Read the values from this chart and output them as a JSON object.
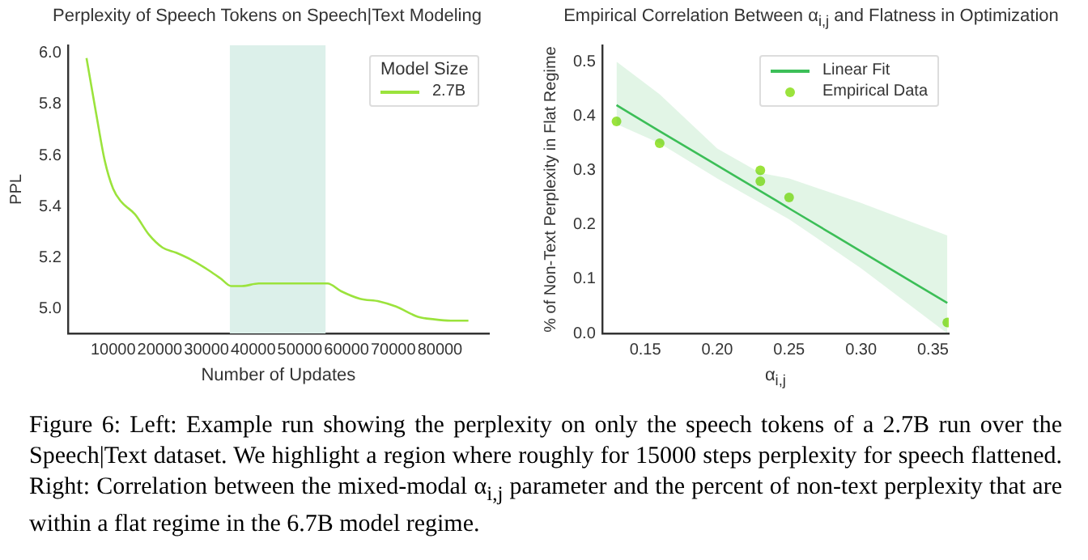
{
  "chart_data": [
    {
      "type": "line",
      "title": "Perplexity of Speech Tokens on Speech|Text Modeling",
      "xlabel": "Number of Updates",
      "ylabel": "PPL",
      "legend": "top right",
      "legend_title": "Model Size",
      "x": [
        4300,
        6400,
        8200,
        10000,
        11700,
        14700,
        17700,
        20600,
        23500,
        27000,
        30600,
        33000,
        35300,
        37600,
        41200,
        45900,
        50600,
        54100,
        55900,
        58800,
        62900,
        67000,
        70600,
        75300,
        78800,
        82300,
        86100
      ],
      "series": [
        {
          "name": "2.7B",
          "color": "#9be33c",
          "marker": "none",
          "values": [
            5.98,
            5.76,
            5.58,
            5.47,
            5.42,
            5.37,
            5.29,
            5.24,
            5.22,
            5.19,
            5.15,
            5.12,
            5.09,
            5.09,
            5.1,
            5.1,
            5.1,
            5.1,
            5.1,
            5.07,
            5.04,
            5.03,
            5.01,
            4.97,
            4.96,
            4.955,
            4.955
          ]
        }
      ],
      "xlim": [
        300,
        90500
      ],
      "xticks": [
        10000,
        20000,
        30000,
        40000,
        50000,
        60000,
        70000,
        80000
      ],
      "ylim": [
        4.905,
        6.03
      ],
      "yticks": [
        {
          "value": 5.0,
          "label": "5.0"
        },
        {
          "value": 5.2,
          "label": "5.2"
        },
        {
          "value": 5.4,
          "label": "5.4"
        },
        {
          "value": 5.6,
          "label": "5.6"
        },
        {
          "value": 5.8,
          "label": "5.8"
        },
        {
          "value": 6.0,
          "label": "6.0"
        }
      ],
      "bands": [
        {
          "axis": "x",
          "from": 35000,
          "to": 55500,
          "color": "#dcf0ea"
        }
      ],
      "grid": false
    },
    {
      "type": "scatter",
      "title": "Empirical Correlation Between α$_{i,j}$ and Flatness in Optimization",
      "xlabel": "α$_{i,j}$",
      "ylabel": "% of Non-Text Perplexity in Flat Regime",
      "legend": "top right",
      "series": [
        {
          "name": "Linear Fit",
          "type": "line",
          "color": "#3cbf58",
          "marker": "none",
          "x": [
            0.13,
            0.16,
            0.2,
            0.23,
            0.25,
            0.3,
            0.36
          ],
          "values": [
            0.42,
            0.372,
            0.309,
            0.262,
            0.23,
            0.151,
            0.056
          ],
          "lower": [
            0.385,
            0.35,
            0.285,
            0.24,
            0.21,
            0.12,
            0.0
          ],
          "upper": [
            0.5,
            0.44,
            0.34,
            0.295,
            0.285,
            0.24,
            0.18
          ]
        },
        {
          "name": "Empirical Data",
          "color": "#9be33c",
          "marker": "circle",
          "x": [
            0.13,
            0.16,
            0.23,
            0.23,
            0.25,
            0.36
          ],
          "values": [
            0.39,
            0.35,
            0.3,
            0.28,
            0.25,
            0.02
          ]
        }
      ],
      "xlim": [
        0.12,
        0.361
      ],
      "xticks": [
        0.15,
        {
          "value": 0.2,
          "label": "0.20"
        },
        0.25,
        {
          "value": 0.3,
          "label": "0.30"
        },
        0.35
      ],
      "ylim": [
        0,
        0.53
      ],
      "yticks": [
        {
          "value": 0,
          "label": "0.0"
        },
        0.1,
        0.2,
        0.3,
        0.4,
        0.5
      ],
      "grid": false
    },
    {
      "type": "other",
      "annotations": [
        "Figure 6: Left: Example run showing the perplexity on only the speech tokens of a 2.7B run over the Speech|Text dataset. We highlight a region where roughly for 15000 steps perplexity for speech flattened. Right: Correlation between the mixed-modal α$_{i,j}$ parameter and the percent of non-text perplexity that are within a flat regime in the 6.7B model regime."
      ]
    }
  ]
}
